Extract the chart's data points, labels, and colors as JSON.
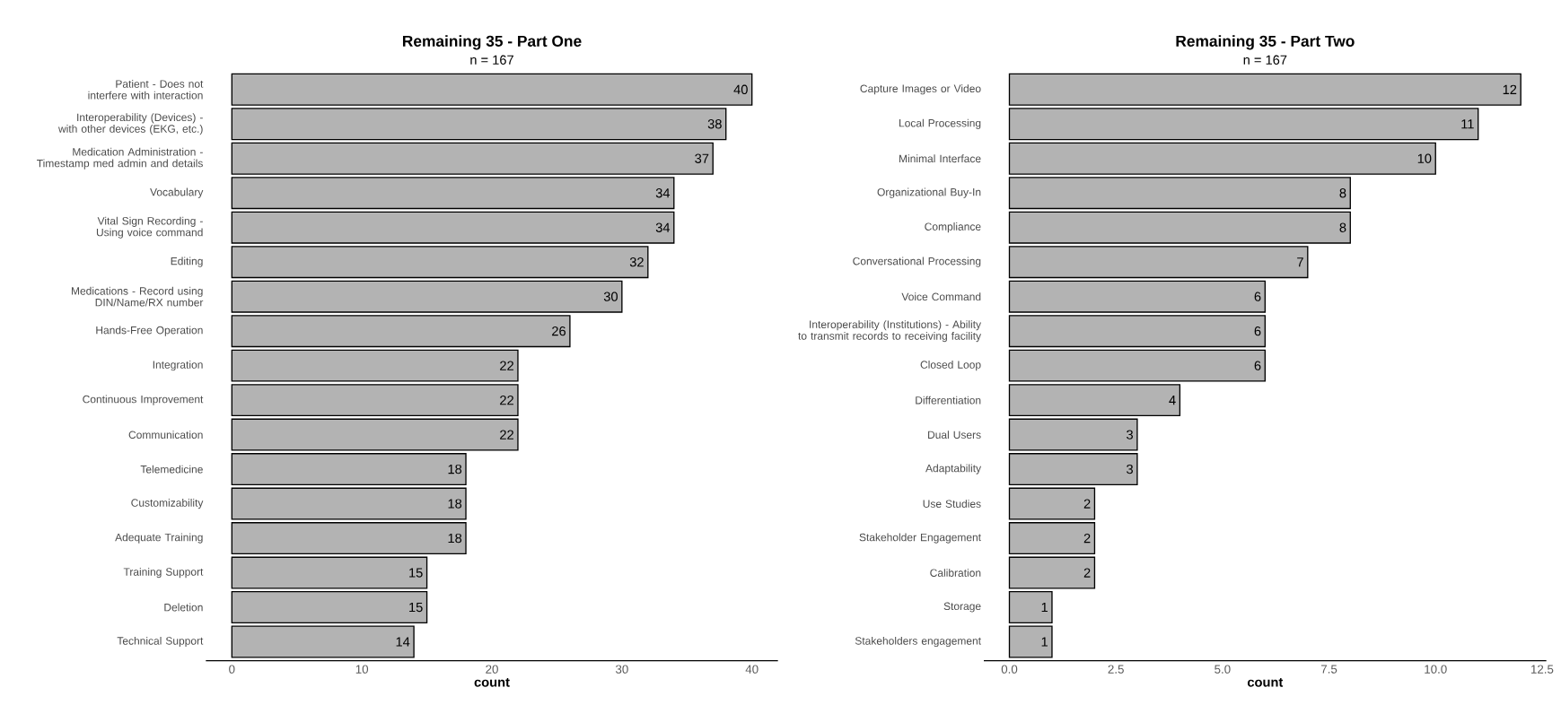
{
  "chart_data": [
    {
      "type": "bar",
      "orientation": "horizontal",
      "title": "Remaining 35 - Part One",
      "subtitle": "n = 167",
      "xlabel": "count",
      "categories": [
        "Patient - Does not interfere with interaction",
        "Interoperability (Devices) - with other devices (EKG, etc.)",
        "Medication Administration - Timestamp med admin and details",
        "Vocabulary",
        "Vital Sign Recording - Using voice command",
        "Editing",
        "Medications - Record using DIN/Name/RX number",
        "Hands-Free Operation",
        "Integration",
        "Continuous Improvement",
        "Communication",
        "Telemedicine",
        "Customizability",
        "Adequate Training",
        "Training Support",
        "Deletion",
        "Technical Support"
      ],
      "values": [
        40,
        38,
        37,
        34,
        34,
        32,
        30,
        26,
        22,
        22,
        22,
        18,
        18,
        18,
        15,
        15,
        14
      ],
      "color": "#b3b3b3",
      "xlim": [
        -2,
        42
      ],
      "xticks": [
        0,
        10,
        20,
        30,
        40
      ],
      "data_labels": true
    },
    {
      "type": "bar",
      "orientation": "horizontal",
      "title": "Remaining 35 - Part Two",
      "subtitle": "n = 167",
      "xlabel": "count",
      "categories": [
        "Capture Images or Video",
        "Local Processing",
        "Minimal Interface",
        "Organizational Buy-In",
        "Compliance",
        "Conversational Processing",
        "Voice Command",
        "Interoperability (Institutions) - Ability to transmit records to receiving facility",
        "Closed Loop",
        "Differentiation",
        "Dual Users",
        "Adaptability",
        "Use Studies",
        "Stakeholder Engagement",
        "Calibration",
        "Storage",
        "Stakeholders engagement"
      ],
      "values": [
        12,
        11,
        10,
        8,
        8,
        7,
        6,
        6,
        6,
        4,
        3,
        3,
        2,
        2,
        2,
        1,
        1
      ],
      "color": "#b3b3b3",
      "xlim": [
        -0.6,
        12.6
      ],
      "xticks": [
        {
          "value": 0,
          "label": "0.0"
        },
        {
          "value": 2.5,
          "label": "2.5"
        },
        {
          "value": 5,
          "label": "5.0"
        },
        {
          "value": 7.5,
          "label": "7.5"
        },
        {
          "value": 10,
          "label": "10.0"
        },
        {
          "value": 12.5,
          "label": "12.5"
        }
      ],
      "data_labels": true
    }
  ]
}
